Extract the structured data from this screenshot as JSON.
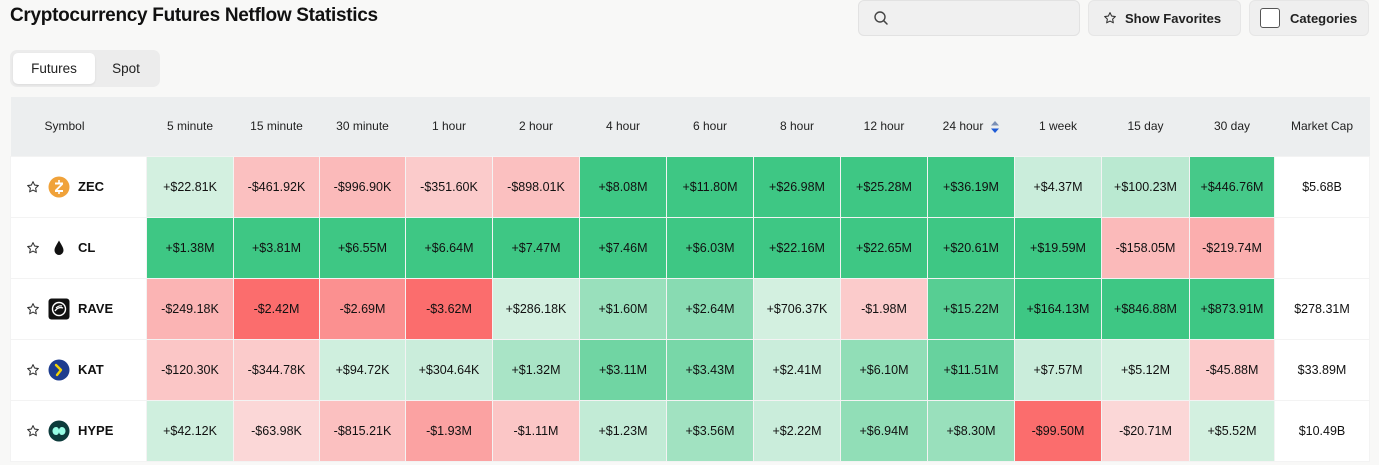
{
  "title": "Cryptocurrency Futures Netflow Statistics",
  "search": {
    "placeholder": "",
    "icon": "search-icon"
  },
  "buttons": {
    "show_favorites": "Show Favorites",
    "categories": "Categories"
  },
  "tabs": [
    {
      "label": "Futures",
      "active": true
    },
    {
      "label": "Spot",
      "active": false
    }
  ],
  "colors": {
    "green_strong": "#3ec784",
    "green_soft": "#e3f4ea",
    "red_strong": "#fb6d6d",
    "red_soft": "#fbe3e3"
  },
  "table": {
    "columns": [
      "Symbol",
      "5 minute",
      "15 minute",
      "30 minute",
      "1 hour",
      "2 hour",
      "4 hour",
      "6 hour",
      "8 hour",
      "12 hour",
      "24 hour",
      "1 week",
      "15 day",
      "30 day",
      "Market Cap"
    ],
    "sorted_column": "24 hour",
    "rows": [
      {
        "symbol": "ZEC",
        "icon": "zcash-coin-icon",
        "values": [
          "+$22.81K",
          "-$461.92K",
          "-$996.90K",
          "-$351.60K",
          "-$898.01K",
          "+$8.08M",
          "+$11.80M",
          "+$26.98M",
          "+$25.28M",
          "+$36.19M",
          "+$4.37M",
          "+$100.23M",
          "+$446.76M"
        ],
        "intensity": [
          0.1,
          -0.3,
          -0.35,
          -0.2,
          -0.3,
          1,
          1,
          1,
          1,
          1,
          0.15,
          0.25,
          0.95
        ],
        "market_cap": "$5.68B"
      },
      {
        "symbol": "CL",
        "icon": "oil-drop-icon",
        "values": [
          "+$1.38M",
          "+$3.81M",
          "+$6.55M",
          "+$6.64M",
          "+$7.47M",
          "+$7.46M",
          "+$6.03M",
          "+$22.16M",
          "+$22.65M",
          "+$20.61M",
          "+$19.59M",
          "-$158.05M",
          "-$219.74M"
        ],
        "intensity": [
          1,
          1,
          1,
          1,
          1,
          1,
          1,
          1,
          1,
          1,
          1,
          -0.35,
          -0.45
        ],
        "market_cap": ""
      },
      {
        "symbol": "RAVE",
        "icon": "rave-coin-icon",
        "values": [
          "-$249.18K",
          "-$2.42M",
          "-$2.69M",
          "-$3.62M",
          "+$286.18K",
          "+$1.60M",
          "+$2.64M",
          "+$706.37K",
          "-$1.98M",
          "+$15.22M",
          "+$164.13M",
          "+$846.88M",
          "+$873.91M"
        ],
        "intensity": [
          -0.4,
          -1,
          -0.7,
          -1,
          0.1,
          0.45,
          0.55,
          0.1,
          -0.2,
          0.85,
          1,
          1,
          1
        ],
        "market_cap": "$278.31M"
      },
      {
        "symbol": "KAT",
        "icon": "kat-coin-icon",
        "values": [
          "-$120.30K",
          "-$344.78K",
          "+$94.72K",
          "+$304.64K",
          "+$1.32M",
          "+$3.11M",
          "+$3.43M",
          "+$2.41M",
          "+$6.10M",
          "+$11.51M",
          "+$7.57M",
          "+$5.12M",
          "-$45.88M"
        ],
        "intensity": [
          -0.25,
          -0.2,
          0.12,
          0.15,
          0.35,
          0.7,
          0.65,
          0.15,
          0.5,
          0.75,
          0.15,
          0.1,
          -0.2
        ],
        "market_cap": "$33.89M"
      },
      {
        "symbol": "HYPE",
        "icon": "hyperliquid-coin-icon",
        "values": [
          "+$42.12K",
          "-$63.98K",
          "-$815.21K",
          "-$1.93M",
          "-$1.11M",
          "+$1.23M",
          "+$3.56M",
          "+$2.22M",
          "+$6.94M",
          "+$8.30M",
          "-$99.50M",
          "-$20.71M",
          "+$5.52M"
        ],
        "intensity": [
          0.12,
          -0.1,
          -0.3,
          -0.55,
          -0.25,
          0.2,
          0.4,
          0.15,
          0.5,
          0.45,
          -1,
          -0.1,
          0.1
        ],
        "market_cap": "$10.49B"
      }
    ]
  }
}
